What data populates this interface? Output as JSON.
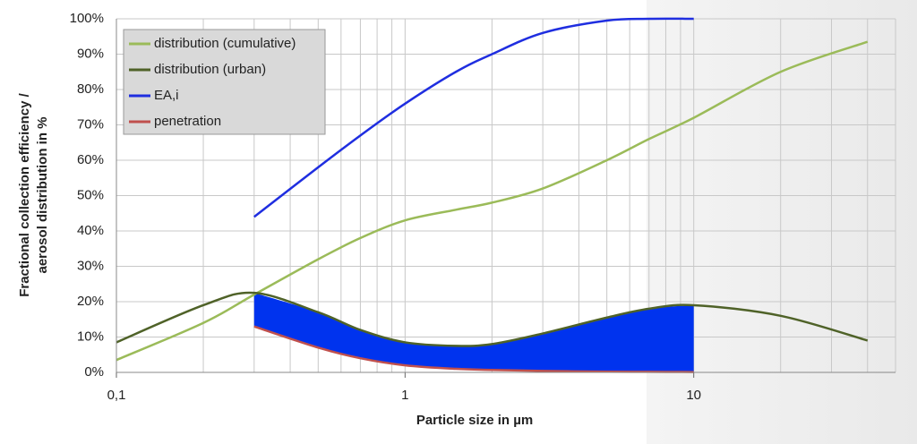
{
  "chart_data": {
    "type": "line",
    "x_label": "Particle size in µm",
    "y_label": [
      "Fractional collection efficiency /",
      "aerosol distribution in %"
    ],
    "xscale": "log",
    "xlim": [
      0.1,
      50
    ],
    "xticks": [
      {
        "value": 0.1,
        "label": "0,1"
      },
      1,
      10
    ],
    "xminorticks": [
      0.2,
      0.3,
      0.4,
      0.5,
      0.6,
      0.7,
      0.8,
      0.9,
      2,
      3,
      4,
      5,
      6,
      7,
      8,
      9,
      20,
      30,
      40,
      50
    ],
    "ylim": [
      0,
      100
    ],
    "yticks": [
      {
        "value": 0,
        "label": "0%"
      },
      {
        "value": 10,
        "label": "10%"
      },
      {
        "value": 20,
        "label": "20%"
      },
      {
        "value": 30,
        "label": "30%"
      },
      {
        "value": 40,
        "label": "40%"
      },
      {
        "value": 50,
        "label": "50%"
      },
      {
        "value": 60,
        "label": "60%"
      },
      {
        "value": 70,
        "label": "70%"
      },
      {
        "value": 80,
        "label": "80%"
      },
      {
        "value": 90,
        "label": "90%"
      },
      {
        "value": 100,
        "label": "100%"
      }
    ],
    "grid": true,
    "legend": "upper left",
    "fill_between": [
      "distribution (urban)",
      "penetration"
    ],
    "fill_color": "#0033ee",
    "x": [
      0.1,
      0.2,
      0.3,
      0.5,
      0.7,
      1,
      1.5,
      2,
      3,
      5,
      7,
      10,
      20,
      40
    ],
    "series": [
      {
        "name": "distribution (cumulative)",
        "color": "#9bbb59",
        "values": [
          3.5,
          14,
          22,
          32,
          38,
          43,
          46,
          48,
          52,
          60,
          66,
          72,
          85,
          93.5
        ]
      },
      {
        "name": "distribution (urban)",
        "color": "#4f6228",
        "values": [
          8.5,
          19,
          22.5,
          17,
          12,
          8.5,
          7.5,
          8,
          11,
          15.5,
          18,
          19,
          16,
          9
        ]
      },
      {
        "name": "EA,i",
        "color": "#1f2ee0",
        "values": [
          null,
          null,
          44,
          58,
          67,
          76,
          85,
          90,
          96,
          99.5,
          100,
          100,
          null,
          null
        ]
      },
      {
        "name": "penetration",
        "color": "#c0504d",
        "values": [
          null,
          null,
          13,
          7,
          4,
          2,
          1,
          0.7,
          0.4,
          0.2,
          0.15,
          0.1,
          null,
          null
        ]
      }
    ]
  }
}
